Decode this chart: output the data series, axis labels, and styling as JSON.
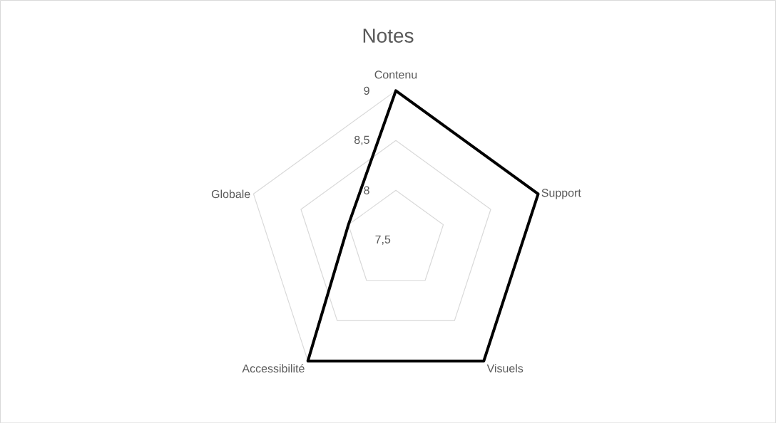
{
  "chart_data": {
    "type": "radar",
    "title": "Notes",
    "categories": [
      "Contenu",
      "Support",
      "Visuels",
      "Accessibilité",
      "Globale"
    ],
    "series": [
      {
        "color": "#000000",
        "values": [
          9,
          9,
          9,
          9,
          8
        ]
      }
    ],
    "ylim": [
      7.5,
      9
    ],
    "yticks": [
      {
        "value": 7.5,
        "label": "7,5"
      },
      8,
      {
        "value": 8.5,
        "label": "8,5"
      },
      9
    ],
    "grid": true
  }
}
